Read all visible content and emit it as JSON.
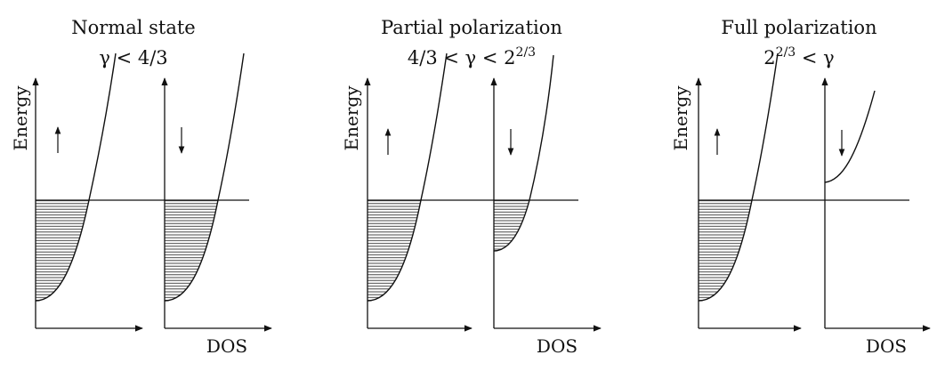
{
  "panels": [
    {
      "title": "Normal state",
      "condition": {
        "main": "γ < 4/3",
        "sup": ""
      },
      "y_axis_label": "Energy",
      "x_axis_label": "DOS",
      "spin_up": {
        "arrow": "up-arrow",
        "band_bottom": -0.88,
        "filled": true
      },
      "spin_down": {
        "arrow": "down-arrow",
        "band_bottom": -0.88,
        "filled": true
      }
    },
    {
      "title": "Partial polarization",
      "condition": {
        "main": "4/3 < γ < 2",
        "sup": "2/3"
      },
      "y_axis_label": "Energy",
      "x_axis_label": "DOS",
      "spin_up": {
        "arrow": "up-arrow",
        "band_bottom": -0.88,
        "filled": true
      },
      "spin_down": {
        "arrow": "down-arrow",
        "band_bottom": -0.42,
        "filled": true
      }
    },
    {
      "title": "Full polarization",
      "condition": {
        "main": "2",
        "sup": "2/3",
        "tail": " < γ"
      },
      "y_axis_label": "Energy",
      "x_axis_label": "DOS",
      "spin_up": {
        "arrow": "up-arrow",
        "band_bottom": -0.88,
        "filled": true
      },
      "spin_down": {
        "arrow": "down-arrow",
        "band_bottom": 0.16,
        "filled": false
      }
    }
  ],
  "colors": {
    "line": "#111111",
    "hatch": "#333333"
  }
}
